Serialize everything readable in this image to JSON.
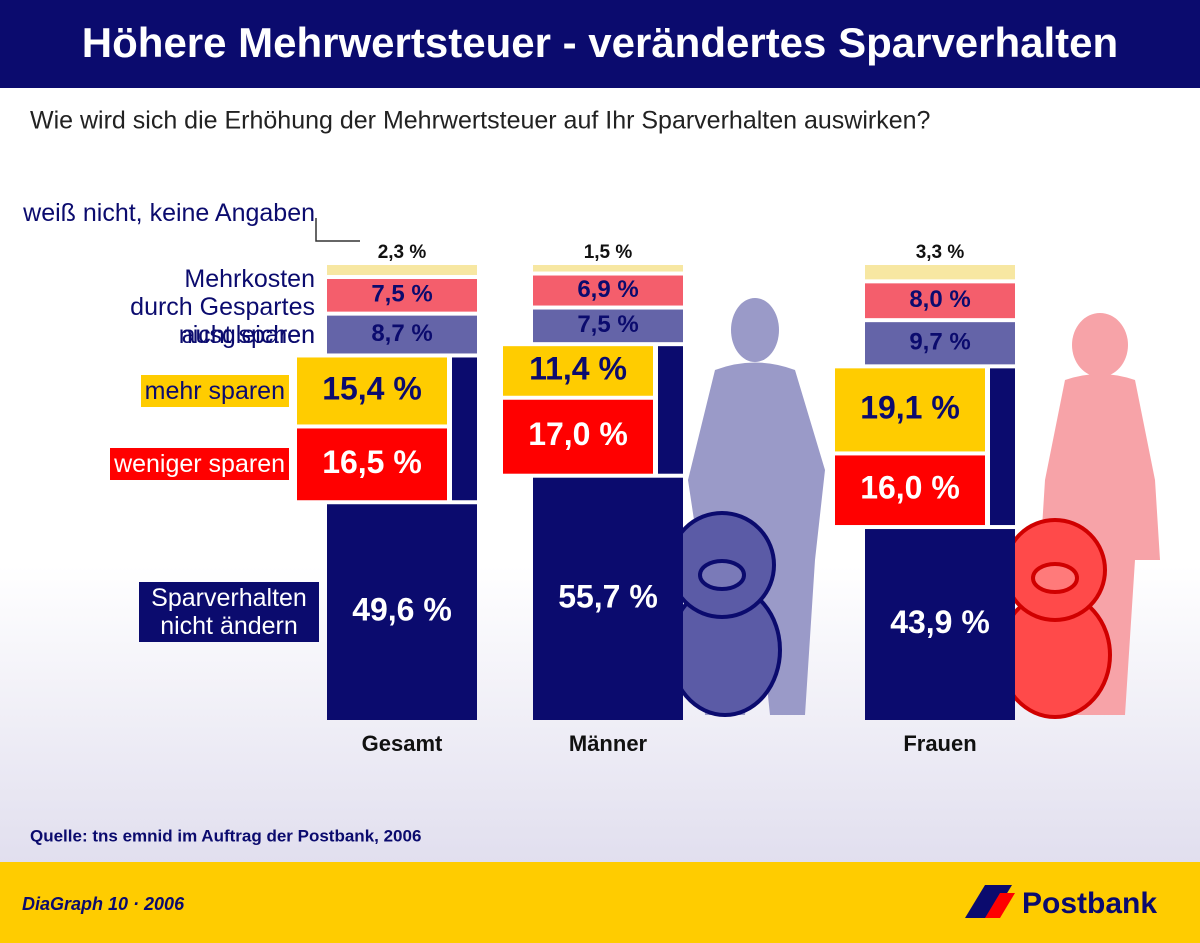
{
  "chart_data": {
    "type": "stacked_bar",
    "title": "Höhere Mehrwertsteuer - verändertes Sparverhalten",
    "subtitle": "Wie wird sich die Erhöhung der Mehrwertsteuer auf Ihr Sparverhalten auswirken?",
    "categories": [
      "Gesamt",
      "Männer",
      "Frauen"
    ],
    "series": [
      {
        "name": "Sparverhalten nicht ändern",
        "color": "#0b0b6e",
        "values": [
          49.6,
          55.7,
          43.9
        ],
        "value_labels": [
          "49,6 %",
          "55,7 %",
          "43,9 %"
        ]
      },
      {
        "name": "weniger sparen",
        "color": "#ff0000",
        "values": [
          16.5,
          17.0,
          16.0
        ],
        "value_labels": [
          "16,5 %",
          "17,0 %",
          "16,0 %"
        ]
      },
      {
        "name": "mehr sparen",
        "color": "#ffcc00",
        "values": [
          15.4,
          11.4,
          19.1
        ],
        "value_labels": [
          "15,4 %",
          "11,4 %",
          "19,1 %"
        ]
      },
      {
        "name": "nicht sparen",
        "color": "#6464a8",
        "values": [
          8.7,
          7.5,
          9.7
        ],
        "value_labels": [
          "8,7 %",
          "7,5 %",
          "9,7 %"
        ]
      },
      {
        "name": "Mehrkosten durch Gespartes ausgleichen",
        "color": "#f45e6c",
        "values": [
          7.5,
          6.9,
          8.0
        ],
        "value_labels": [
          "7,5 %",
          "6,9 %",
          "8,0 %"
        ]
      },
      {
        "name": "weiß nicht, keine Angaben",
        "color": "#f7e7a2",
        "values": [
          2.3,
          1.5,
          3.3
        ],
        "value_labels": [
          "2,3 %",
          "1,5 %",
          "3,3 %"
        ]
      }
    ],
    "source": "Quelle: tns emnid im Auftrag der Postbank, 2006",
    "footer": "DiaGraph 10 · 2006",
    "brand": "Postbank"
  }
}
